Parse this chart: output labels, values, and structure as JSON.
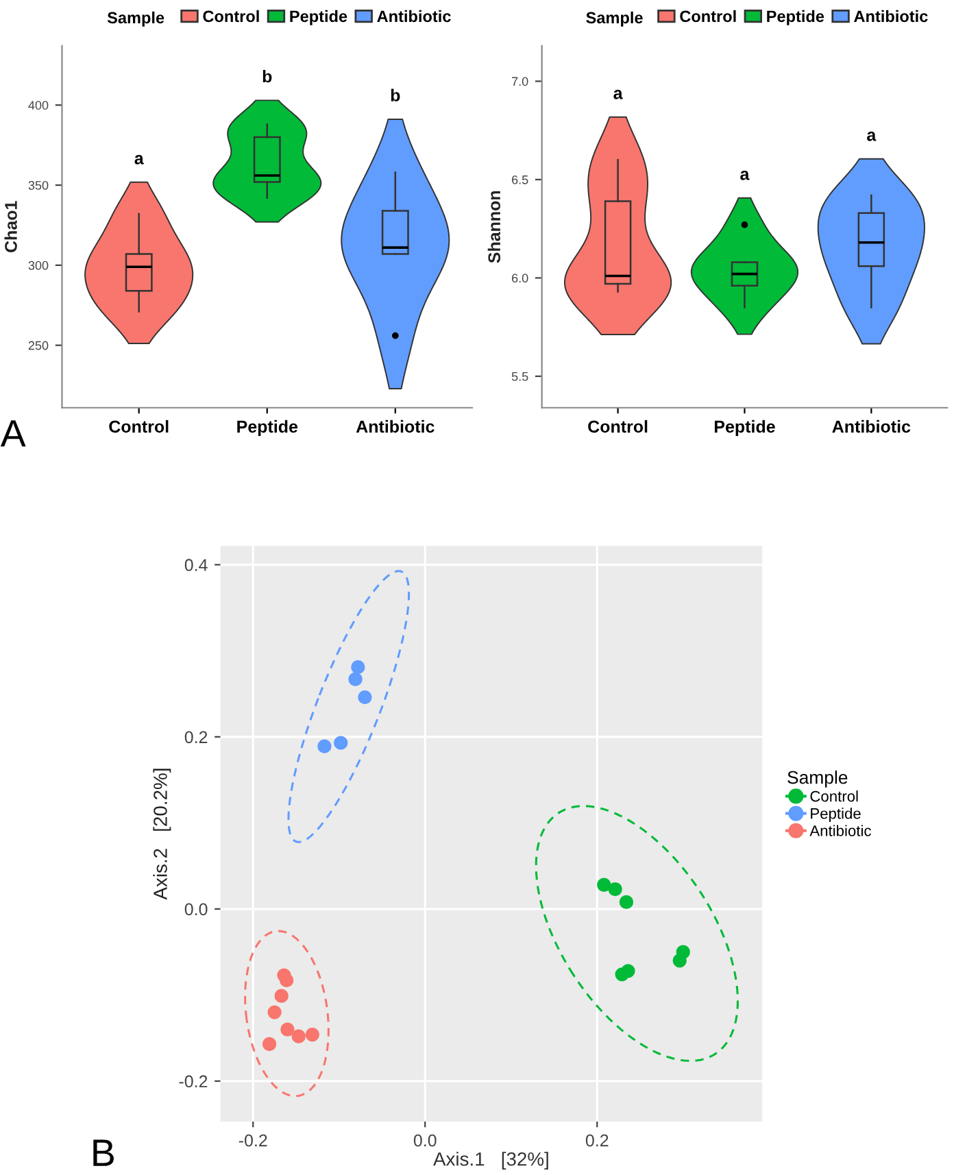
{
  "chart_data": [
    {
      "type": "box",
      "ylabel": "Chao1",
      "categories": [
        "Control",
        "Peptide",
        "Antibiotic"
      ],
      "series": [
        {
          "name": "Control",
          "color": "#f8766d",
          "boxes": [
            {
              "low": 271,
              "q1": 284,
              "median": 299,
              "q3": 307,
              "high": 332
            },
            null,
            null
          ]
        },
        {
          "name": "Peptide",
          "color": "#00ba38",
          "boxes": [
            null,
            {
              "low": 342,
              "q1": 352,
              "median": 356,
              "q3": 380,
              "high": 388
            },
            null
          ]
        },
        {
          "name": "Antibiotic",
          "color": "#619cff",
          "boxes": [
            null,
            null,
            {
              "low": 307,
              "q1": 307,
              "median": 311,
              "q3": 334,
              "high": 358,
              "outliers": [
                256
              ]
            }
          ]
        }
      ],
      "ylim": [
        211,
        437
      ],
      "yticks": [
        250,
        300,
        350,
        400
      ],
      "legend": "top",
      "legend_title": "Sample",
      "annotations": [
        "a",
        "b",
        "b",
        "A"
      ]
    },
    {
      "type": "box",
      "ylabel": "Shannon",
      "categories": [
        "Control",
        "Peptide",
        "Antibiotic"
      ],
      "series": [
        {
          "name": "Control",
          "color": "#f8766d",
          "boxes": [
            {
              "low": 5.93,
              "q1": 5.97,
              "median": 6.01,
              "q3": 6.39,
              "high": 6.6
            },
            null,
            null
          ]
        },
        {
          "name": "Peptide",
          "color": "#00ba38",
          "boxes": [
            null,
            {
              "low": 5.85,
              "q1": 5.96,
              "median": 6.02,
              "q3": 6.08,
              "high": 6.08,
              "outliers": [
                6.27
              ]
            },
            null
          ]
        },
        {
          "name": "Antibiotic",
          "color": "#619cff",
          "boxes": [
            null,
            null,
            {
              "low": 5.85,
              "q1": 6.06,
              "median": 6.18,
              "q3": 6.33,
              "high": 6.42
            }
          ]
        }
      ],
      "ylim": [
        5.34,
        7.18
      ],
      "yticks": [
        5.5,
        {
          "value": 6,
          "label": "6.0"
        },
        6.5,
        {
          "value": 7,
          "label": "7.0"
        }
      ],
      "legend": "top",
      "legend_title": "Sample",
      "annotations": [
        "a",
        "a",
        "a"
      ]
    },
    {
      "type": "scatter",
      "xlabel": "Axis.1   [32%]",
      "ylabel": "Axis.2   [20.2%]",
      "legend_title": "Sample",
      "legend": "right",
      "grid": true,
      "marker": "circle",
      "xlim": [
        -0.238,
        0.392
      ],
      "xticks": [
        -0.2,
        {
          "value": 0,
          "label": "0.0"
        },
        0.2
      ],
      "ylim": [
        -0.247,
        0.422
      ],
      "yticks": [
        -0.2,
        {
          "value": 0,
          "label": "0.0"
        },
        0.2,
        0.4
      ],
      "series": [
        {
          "name": "Control",
          "color": "#00ba38",
          "x": [
            0.208,
            0.221,
            0.234,
            0.296,
            0.3,
            0.229,
            0.236
          ],
          "values": [
            0.028,
            0.023,
            0.008,
            -0.06,
            -0.05,
            -0.076,
            -0.072
          ]
        },
        {
          "name": "Peptide",
          "color": "#619cff",
          "x": [
            -0.117,
            -0.098,
            -0.081,
            -0.078,
            -0.07
          ],
          "values": [
            0.189,
            0.193,
            0.267,
            0.281,
            0.246
          ]
        },
        {
          "name": "Antibiotic",
          "color": "#f8766d",
          "x": [
            -0.164,
            -0.161,
            -0.167,
            -0.175,
            -0.16,
            -0.147,
            -0.131,
            -0.181
          ],
          "values": [
            -0.077,
            -0.083,
            -0.101,
            -0.12,
            -0.14,
            -0.148,
            -0.146,
            -0.157
          ]
        }
      ],
      "annotations": [
        "B"
      ]
    }
  ]
}
